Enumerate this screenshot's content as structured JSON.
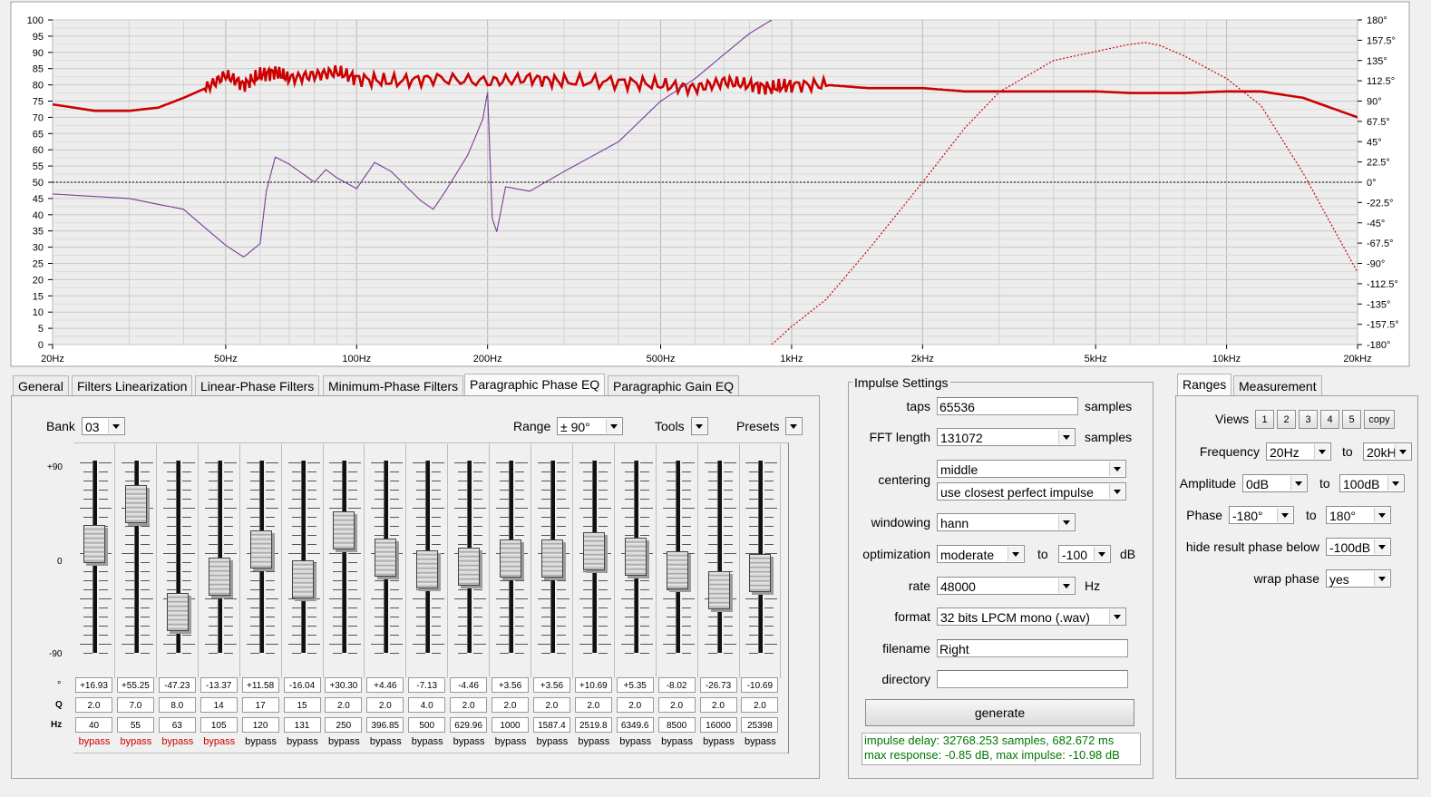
{
  "chart_data": {
    "type": "line",
    "x_ticks": [
      "20Hz",
      "50Hz",
      "100Hz",
      "200Hz",
      "500Hz",
      "1kHz",
      "2kHz",
      "5kHz",
      "10kHz",
      "20kHz"
    ],
    "x_tick_values": [
      20,
      50,
      100,
      200,
      500,
      1000,
      2000,
      5000,
      10000,
      20000
    ],
    "y_left_ticks": [
      "100",
      "95",
      "90",
      "85",
      "80",
      "75",
      "70",
      "65",
      "60",
      "55",
      "50",
      "45",
      "40",
      "35",
      "30",
      "25",
      "20",
      "15",
      "10",
      "5",
      "0"
    ],
    "y_right_ticks": [
      "180°",
      "157.5°",
      "135°",
      "112.5°",
      "90°",
      "67.5°",
      "45°",
      "22.5°",
      "0°",
      "-22.5°",
      "-45°",
      "-67.5°",
      "-90°",
      "-112.5°",
      "-135°",
      "-157.5°",
      "-180°"
    ],
    "y_left_range": [
      0,
      100
    ],
    "y_right_range": [
      -180,
      180
    ],
    "x_scale": "log",
    "x_range": [
      20,
      20000
    ],
    "grid": true,
    "series": [
      {
        "color": "#cc0000",
        "axis": "left",
        "style": "solid-thick",
        "x": [
          20,
          25,
          30,
          35,
          40,
          45,
          50,
          55,
          60,
          65,
          70,
          80,
          90,
          100,
          120,
          150,
          200,
          250,
          300,
          400,
          500,
          600,
          700,
          800,
          900,
          1000,
          1200,
          1500,
          2000,
          2500,
          3000,
          4000,
          5000,
          6000,
          8000,
          10000,
          12000,
          15000,
          20000
        ],
        "y": [
          74,
          72,
          72,
          73,
          76,
          79,
          83,
          80,
          83,
          84,
          82,
          83,
          84,
          82,
          81,
          82,
          81,
          82,
          81,
          81,
          80,
          79,
          81,
          80,
          79,
          80,
          80,
          79,
          79,
          78,
          78,
          78,
          78,
          77.5,
          77.5,
          78,
          78,
          76,
          70
        ]
      },
      {
        "color": "#5a3fb0",
        "axis": "right",
        "style": "thin",
        "x": [
          20,
          30,
          40,
          50,
          55,
          60,
          62,
          65,
          70,
          80,
          85,
          90,
          100,
          110,
          120,
          140,
          150,
          160,
          180,
          195,
          200,
          205,
          210,
          220,
          250,
          300,
          400,
          500,
          600,
          700,
          800,
          900
        ],
        "y": [
          -13,
          -18,
          -30,
          -70,
          -83,
          -68,
          -10,
          28,
          20,
          0,
          14,
          5,
          -7,
          22,
          12,
          -20,
          -30,
          -10,
          30,
          70,
          100,
          -40,
          -55,
          -5,
          -10,
          12,
          45,
          90,
          115,
          142,
          165,
          180
        ]
      },
      {
        "color": "#cc0000",
        "axis": "right",
        "style": "dotted",
        "x": [
          900,
          1000,
          1200,
          1500,
          2000,
          2500,
          3000,
          4000,
          5000,
          6000,
          6500,
          7000,
          8000,
          10000,
          12000,
          15000,
          20000
        ],
        "y": [
          -180,
          -160,
          -130,
          -75,
          0,
          60,
          100,
          135,
          145,
          153,
          155,
          152,
          140,
          115,
          85,
          10,
          -100
        ]
      }
    ]
  },
  "tabs": [
    "General",
    "Filters Linearization",
    "Linear-Phase Filters",
    "Minimum-Phase Filters",
    "Paragraphic Phase EQ",
    "Paragraphic Gain EQ"
  ],
  "eq": {
    "bank_label": "Bank",
    "bank_value": "03",
    "range_label": "Range",
    "range_value": "± 90°",
    "tools_label": "Tools",
    "presets_label": "Presets",
    "scale_top": "+90",
    "scale_mid": "0",
    "scale_bot": "-90",
    "row_labels": [
      "°",
      "Q",
      "Hz"
    ],
    "bands": [
      {
        "deg": "+16.93",
        "q": "2.0",
        "hz": "40",
        "bypass": "bypass",
        "red": true
      },
      {
        "deg": "+55.25",
        "q": "7.0",
        "hz": "55",
        "bypass": "bypass",
        "red": true
      },
      {
        "deg": "-47.23",
        "q": "8.0",
        "hz": "63",
        "bypass": "bypass",
        "red": true
      },
      {
        "deg": "-13.37",
        "q": "14",
        "hz": "105",
        "bypass": "bypass",
        "red": true
      },
      {
        "deg": "+11.58",
        "q": "17",
        "hz": "120",
        "bypass": "bypass",
        "red": false
      },
      {
        "deg": "-16.04",
        "q": "15",
        "hz": "131",
        "bypass": "bypass",
        "red": false
      },
      {
        "deg": "+30.30",
        "q": "2.0",
        "hz": "250",
        "bypass": "bypass",
        "red": false
      },
      {
        "deg": "+4.46",
        "q": "2.0",
        "hz": "396.85",
        "bypass": "bypass",
        "red": false
      },
      {
        "deg": "-7.13",
        "q": "4.0",
        "hz": "500",
        "bypass": "bypass",
        "red": false
      },
      {
        "deg": "-4.46",
        "q": "2.0",
        "hz": "629.96",
        "bypass": "bypass",
        "red": false
      },
      {
        "deg": "+3.56",
        "q": "2.0",
        "hz": "1000",
        "bypass": "bypass",
        "red": false
      },
      {
        "deg": "+3.56",
        "q": "2.0",
        "hz": "1587.4",
        "bypass": "bypass",
        "red": false
      },
      {
        "deg": "+10.69",
        "q": "2.0",
        "hz": "2519.8",
        "bypass": "bypass",
        "red": false
      },
      {
        "deg": "+5.35",
        "q": "2.0",
        "hz": "6349.6",
        "bypass": "bypass",
        "red": false
      },
      {
        "deg": "-8.02",
        "q": "2.0",
        "hz": "8500",
        "bypass": "bypass",
        "red": false
      },
      {
        "deg": "-26.73",
        "q": "2.0",
        "hz": "16000",
        "bypass": "bypass",
        "red": false
      },
      {
        "deg": "-10.69",
        "q": "2.0",
        "hz": "25398",
        "bypass": "bypass",
        "red": false
      }
    ]
  },
  "impulse": {
    "title": "Impulse Settings",
    "taps_label": "taps",
    "taps_value": "65536",
    "taps_unit": "samples",
    "fft_label": "FFT length",
    "fft_value": "131072",
    "fft_unit": "samples",
    "centering_label": "centering",
    "centering_value": "middle",
    "centering_value2": "use closest perfect impulse",
    "windowing_label": "windowing",
    "windowing_value": "hann",
    "optimization_label": "optimization",
    "optimization_value": "moderate",
    "optimization_to": "to",
    "optimization_db_value": "-100",
    "optimization_unit": "dB",
    "rate_label": "rate",
    "rate_value": "48000",
    "rate_unit": "Hz",
    "format_label": "format",
    "format_value": "32 bits LPCM mono (.wav)",
    "filename_label": "filename",
    "filename_value": "Right",
    "directory_label": "directory",
    "directory_value": "",
    "generate_label": "generate",
    "status_line1": "impulse delay: 32768.253 samples, 682.672 ms",
    "status_line2": "max response: -0.85 dB, max impulse: -10.98 dB"
  },
  "ranges": {
    "tabs": [
      "Ranges",
      "Measurement"
    ],
    "views_label": "Views",
    "views": [
      "1",
      "2",
      "3",
      "4",
      "5"
    ],
    "copy_label": "copy",
    "frequency_label": "Frequency",
    "freq_from": "20Hz",
    "freq_to": "20kHz",
    "amplitude_label": "Amplitude",
    "amp_from": "0dB",
    "amp_to": "100dB",
    "phase_label": "Phase",
    "phase_from": "-180°",
    "phase_to": "180°",
    "to_label": "to",
    "hide_label": "hide result phase below",
    "hide_value": "-100dB",
    "wrap_label": "wrap phase",
    "wrap_value": "yes"
  },
  "colors": {
    "magnitude": "#cc0000",
    "phase": "#5a3fb0",
    "bypass_red": "#cc0000",
    "status_green": "#007700"
  }
}
